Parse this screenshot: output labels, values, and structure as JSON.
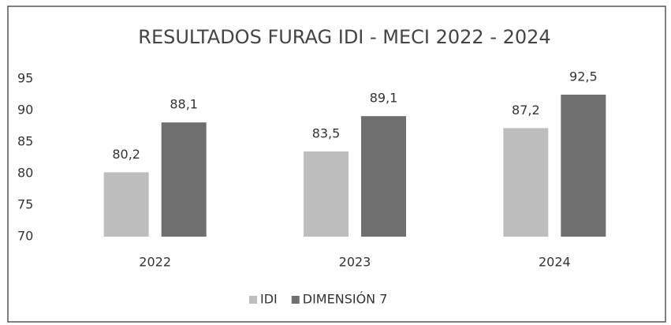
{
  "chart_data": {
    "type": "bar",
    "title": "RESULTADOS FURAG IDI - MECI 2022 - 2024",
    "categories": [
      "2022",
      "2023",
      "2024"
    ],
    "series": [
      {
        "name": "IDI",
        "color": "#bdbdbd",
        "values": [
          80.2,
          83.5,
          87.2
        ],
        "value_labels": [
          "80,2",
          "83,5",
          "87,2"
        ]
      },
      {
        "name": "DIMENSIÓN 7",
        "color": "#6f6f6f",
        "values": [
          88.1,
          89.1,
          92.5
        ],
        "value_labels": [
          "88,1",
          "89,1",
          "92,5"
        ]
      }
    ],
    "ylim": [
      70,
      95
    ],
    "yticks": [
      70,
      75,
      80,
      85,
      90,
      95
    ],
    "grid": false,
    "legend": "bottom"
  }
}
